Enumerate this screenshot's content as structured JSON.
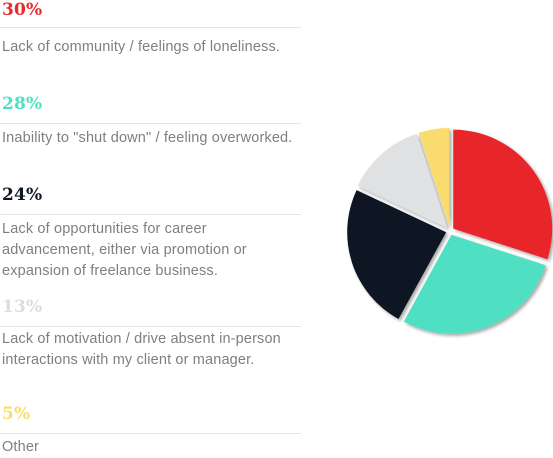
{
  "legend": {
    "items": [
      {
        "percent": "30%",
        "label": "Lack of community / feelings of loneliness.",
        "color": "#e8282c"
      },
      {
        "percent": "28%",
        "label": "Inability to \"shut down\" / feeling overworked.",
        "color": "#4fe0c3"
      },
      {
        "percent": "24%",
        "label": "Lack of opportunities for career advancement, either via promotion or expansion of freelance business.",
        "color": "#0d1723"
      },
      {
        "percent": "13%",
        "label": "Lack of motivation / drive absent in-person interactions with my client or manager.",
        "color": "#dcdcdc"
      },
      {
        "percent": "5%",
        "label": "Other",
        "color": "#f9dc6d"
      }
    ]
  },
  "chart_data": {
    "type": "pie",
    "categories": [
      "Lack of community / feelings of loneliness.",
      "Inability to \"shut down\" / feeling overworked.",
      "Lack of opportunities for career advancement, either via promotion or expansion of freelance business.",
      "Lack of motivation / drive absent in-person interactions with my client or manager.",
      "Other"
    ],
    "values": [
      30,
      28,
      24,
      13,
      5
    ],
    "colors": [
      "#e8282c",
      "#4fe0c3",
      "#0d1723",
      "#e0e1e3",
      "#f9dc6d"
    ],
    "exploded": true
  }
}
